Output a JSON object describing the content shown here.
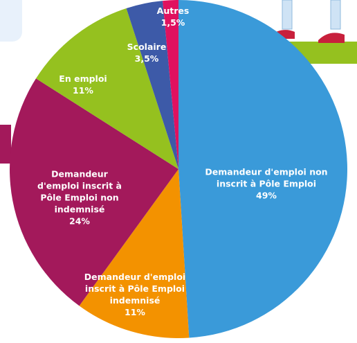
{
  "chart_data": {
    "type": "pie",
    "categories": [
      "Demandeur d'emploi non inscrit à Pôle Emploi",
      "Demandeur d'emploi inscrit à Pôle Emploi indemnisé",
      "Demandeur d'emploi inscrit à Pôle Emploi non indemnisé",
      "En emploi",
      "Scolaire",
      "Autres"
    ],
    "values": [
      49,
      11,
      24,
      11,
      3.5,
      1.5
    ],
    "value_labels": [
      "49%",
      "11%",
      "24%",
      "11%",
      "3,5%",
      "1,5%"
    ],
    "colors": [
      "#3a9ad9",
      "#f39200",
      "#a3195b",
      "#95c11f",
      "#3d5aa8",
      "#e0115f"
    ]
  }
}
